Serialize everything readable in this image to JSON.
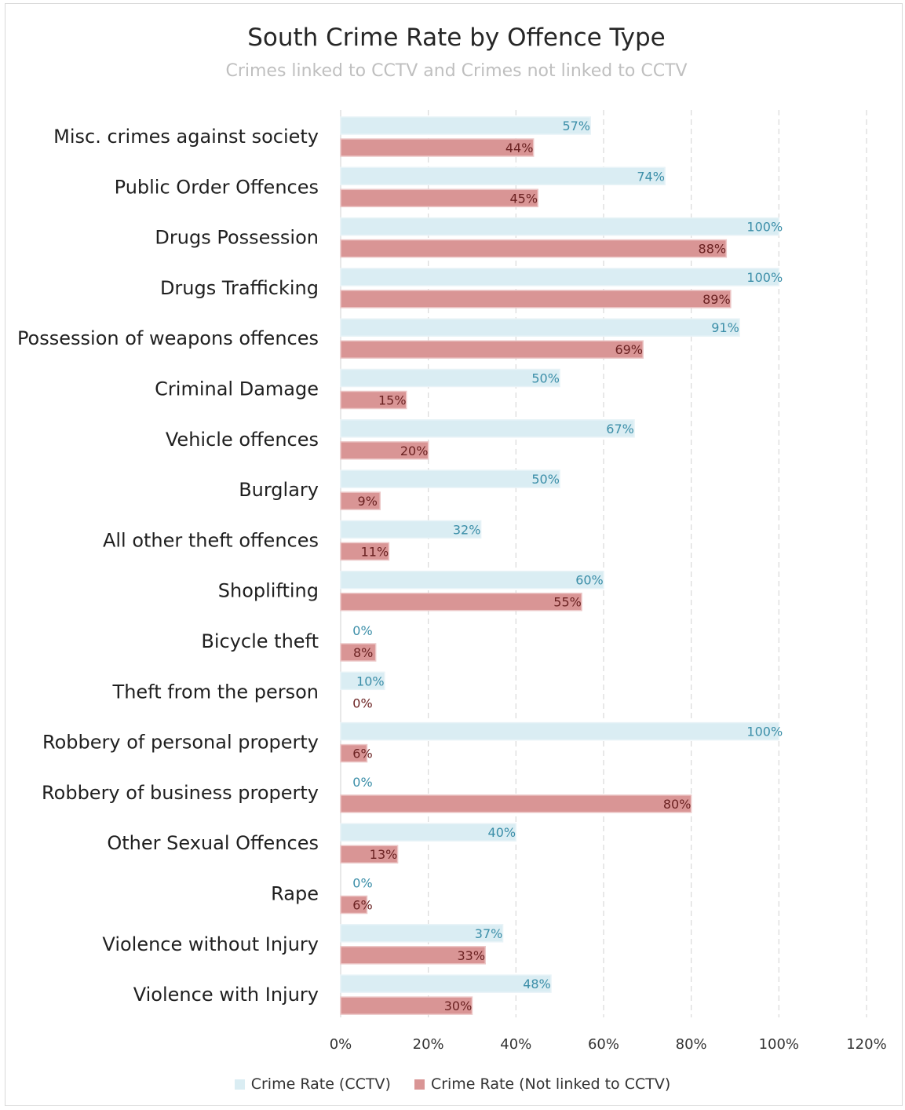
{
  "chart_data": {
    "type": "bar",
    "orientation": "horizontal",
    "title": "South Crime Rate by Offence Type",
    "subtitle": "Crimes linked to CCTV and Crimes not linked to CCTV",
    "categories": [
      "Misc. crimes against society",
      "Public Order Offences",
      "Drugs Possession",
      "Drugs Trafficking",
      "Possession of weapons offences",
      "Criminal Damage",
      "Vehicle offences",
      "Burglary",
      "All other theft offences",
      "Shoplifting",
      "Bicycle theft",
      "Theft from the person",
      "Robbery of personal property",
      "Robbery of business property",
      "Other Sexual Offences",
      "Rape",
      "Violence without Injury",
      "Violence with Injury"
    ],
    "series": [
      {
        "name": "Crime Rate (CCTV)",
        "color": "#daedf3",
        "label_color": "#3b8ea8",
        "values": [
          57,
          74,
          100,
          100,
          91,
          50,
          67,
          50,
          32,
          60,
          0,
          10,
          100,
          0,
          40,
          0,
          37,
          48
        ],
        "labels": [
          "57%",
          "74%",
          "100%",
          "100%",
          "91%",
          "50%",
          "67%",
          "50%",
          "32%",
          "60%",
          "0%",
          "10%",
          "100%",
          "0%",
          "40%",
          "0%",
          "37%",
          "48%"
        ]
      },
      {
        "name": "Crime Rate (Not linked to CCTV)",
        "color": "#d99595",
        "label_color": "#6b2222",
        "values": [
          44,
          45,
          88,
          89,
          69,
          15,
          20,
          9,
          11,
          55,
          8,
          0,
          6,
          80,
          13,
          6,
          33,
          30
        ],
        "labels": [
          "44%",
          "45%",
          "88%",
          "89%",
          "69%",
          "15%",
          "20%",
          "9%",
          "11%",
          "55%",
          "8%",
          "0%",
          "6%",
          "80%",
          "13%",
          "6%",
          "33%",
          "30%"
        ]
      }
    ],
    "xlim": [
      0,
      120
    ],
    "xticks": [
      0,
      20,
      40,
      60,
      80,
      100,
      120
    ],
    "xtick_labels": [
      "0%",
      "20%",
      "40%",
      "60%",
      "80%",
      "100%",
      "120%"
    ],
    "grid": "vertical dashed",
    "legend_position": "bottom"
  }
}
